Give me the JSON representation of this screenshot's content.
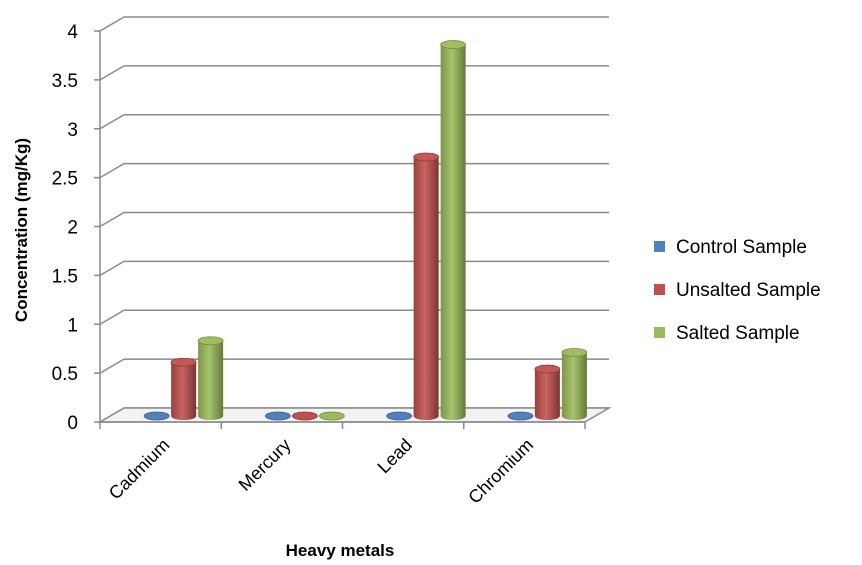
{
  "chart_data": {
    "type": "bar",
    "variant": "3d-cylinder",
    "categories": [
      "Cadmium",
      "Mercury",
      "Lead",
      "Chromium"
    ],
    "series": [
      {
        "name": "Control Sample",
        "color": "#4f81bd",
        "values": [
          0,
          0,
          0,
          0
        ]
      },
      {
        "name": " Unsalted Sample",
        "color": "#c0504d",
        "values": [
          0.55,
          0,
          2.65,
          0.48
        ]
      },
      {
        "name": "Salted Sample",
        "color": "#9bbb59",
        "values": [
          0.77,
          0,
          3.8,
          0.65
        ]
      }
    ],
    "title": "",
    "xlabel": "Heavy metals",
    "ylabel": "Concentration (mg/Kg)",
    "ylim": [
      0,
      4
    ],
    "yticks": [
      "0",
      "0.5",
      "1",
      "1.5",
      "2",
      "2.5",
      "3",
      "3.5",
      "4"
    ],
    "grid": true,
    "legend_position": "right"
  }
}
